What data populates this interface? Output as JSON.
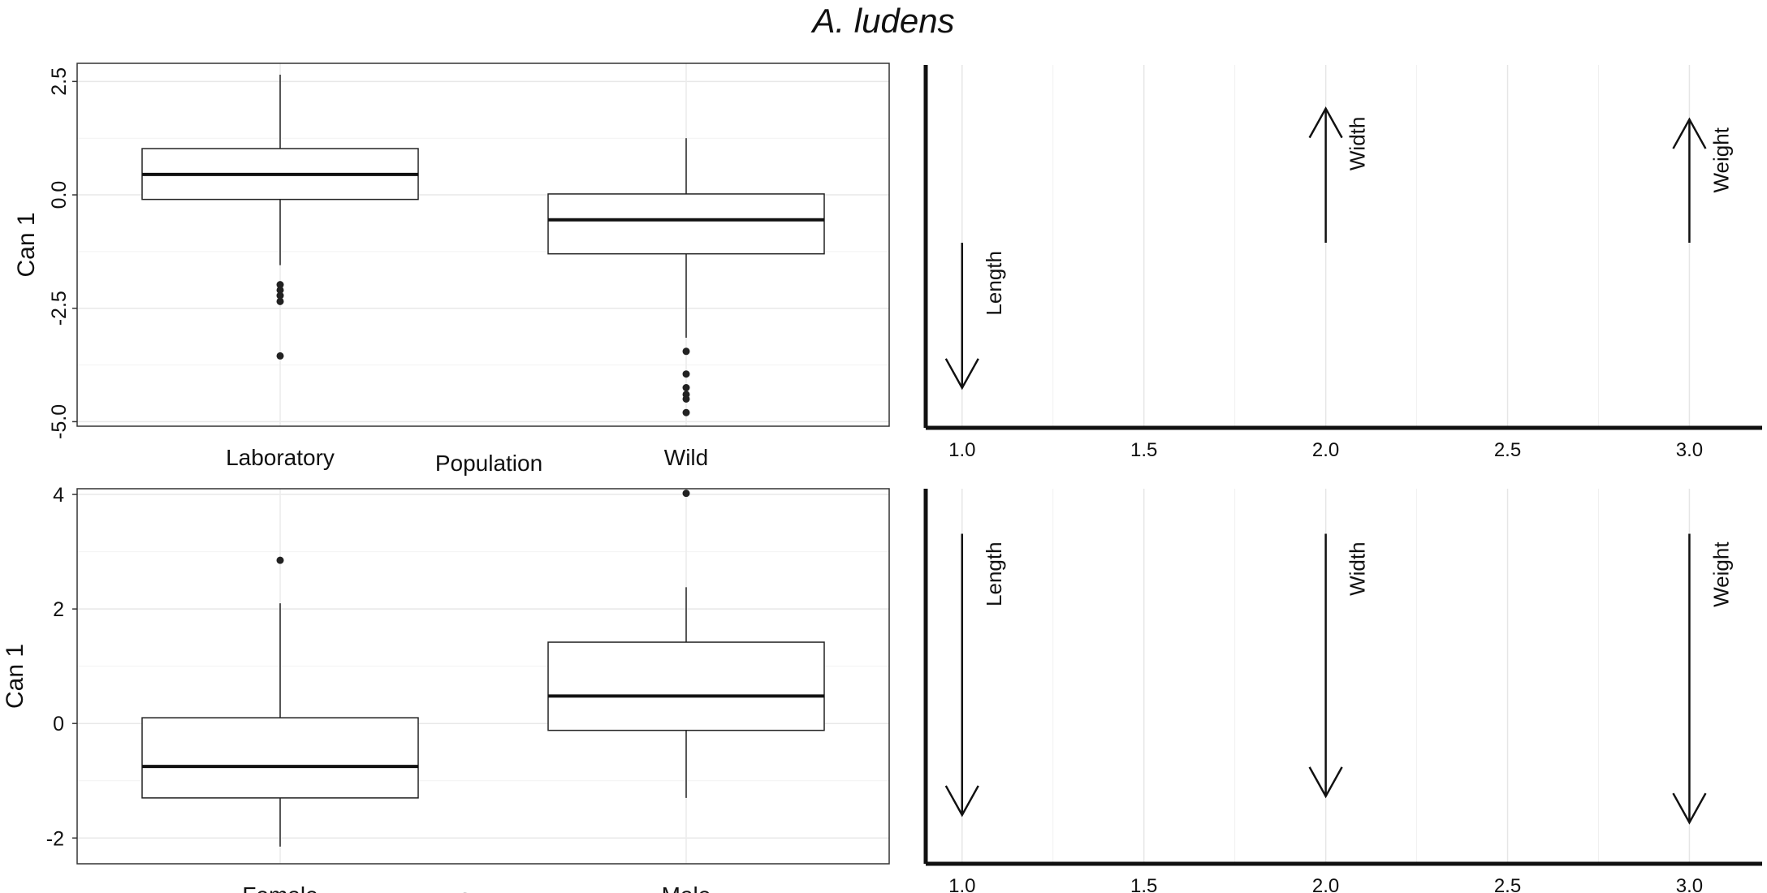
{
  "title": "A. ludens",
  "chart_data": [
    {
      "type": "box",
      "xlabel": "Population",
      "ylabel": "Can 1",
      "categories": [
        "Laboratory",
        "Wild"
      ],
      "ylim": [
        -5.1,
        2.9
      ],
      "yticks": [
        2.5,
        0.0,
        -2.5,
        -5.0
      ],
      "ytick_labels": [
        "2.5",
        "0.0",
        "-2.5",
        "-5.0"
      ],
      "ytick_rotated": true,
      "boxes": [
        {
          "category": "Laboratory",
          "whisker_low": -1.55,
          "q1": -0.1,
          "median": 0.45,
          "q3": 1.02,
          "whisker_high": 2.65,
          "outliers": [
            -1.98,
            -2.1,
            -2.22,
            -2.35,
            -3.55
          ]
        },
        {
          "category": "Wild",
          "whisker_low": -3.15,
          "q1": -1.3,
          "median": -0.55,
          "q3": 0.02,
          "whisker_high": 1.25,
          "outliers": [
            -3.45,
            -3.95,
            -4.25,
            -4.4,
            -4.5,
            -4.8
          ]
        }
      ],
      "grid": true
    },
    {
      "type": "box",
      "xlabel": "Sexes",
      "ylabel": "Can 1",
      "categories": [
        "Female",
        "Male"
      ],
      "ylim": [
        -2.45,
        4.1
      ],
      "yticks": [
        4,
        2,
        0,
        -2
      ],
      "ytick_labels": [
        "4",
        "2",
        "0",
        "-2"
      ],
      "ytick_rotated": false,
      "boxes": [
        {
          "category": "Female",
          "whisker_low": -2.15,
          "q1": -1.3,
          "median": -0.75,
          "q3": 0.1,
          "whisker_high": 2.1,
          "outliers": [
            2.85
          ]
        },
        {
          "category": "Male",
          "whisker_low": -1.3,
          "q1": -0.12,
          "median": 0.48,
          "q3": 1.42,
          "whisker_high": 2.38,
          "outliers": [
            4.02
          ]
        }
      ],
      "grid": true
    },
    {
      "type": "vector",
      "xlim": [
        0.9,
        3.2
      ],
      "xticks": [
        1.0,
        1.5,
        2.0,
        2.5,
        3.0
      ],
      "xtick_labels": [
        "1.0",
        "1.5",
        "2.0",
        "2.5",
        "3.0"
      ],
      "ylim": [
        0,
        1
      ],
      "vectors": [
        {
          "x": 1.0,
          "y_start": 0.51,
          "y_end": 0.11,
          "label": "Length"
        },
        {
          "x": 2.0,
          "y_start": 0.51,
          "y_end": 0.88,
          "label": "Width"
        },
        {
          "x": 3.0,
          "y_start": 0.51,
          "y_end": 0.85,
          "label": "Weight"
        }
      ]
    },
    {
      "type": "vector",
      "xlim": [
        0.9,
        3.2
      ],
      "xticks": [
        1.0,
        1.5,
        2.0,
        2.5,
        3.0
      ],
      "xtick_labels": [
        "1.0",
        "1.5",
        "2.0",
        "2.5",
        "3.0"
      ],
      "ylim": [
        0,
        1
      ],
      "vectors": [
        {
          "x": 1.0,
          "y_start": 0.88,
          "y_end": 0.13,
          "label": "Length"
        },
        {
          "x": 2.0,
          "y_start": 0.88,
          "y_end": 0.18,
          "label": "Width"
        },
        {
          "x": 3.0,
          "y_start": 0.88,
          "y_end": 0.11,
          "label": "Weight"
        }
      ]
    }
  ]
}
